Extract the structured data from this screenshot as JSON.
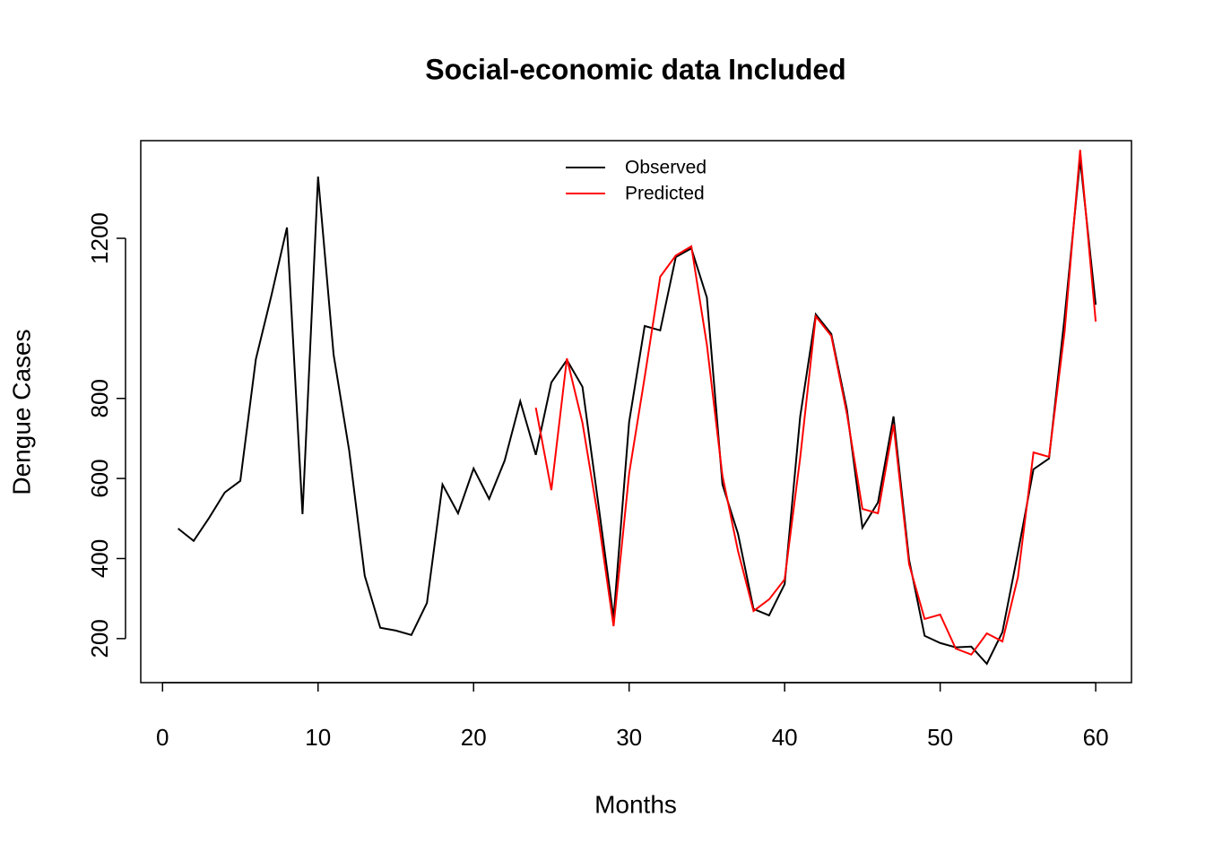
{
  "chart_data": {
    "type": "line",
    "title": "Social-economic data Included",
    "x_label": "Months",
    "y_label": "Dengue Cases",
    "x": [
      1,
      2,
      3,
      4,
      5,
      6,
      7,
      8,
      9,
      10,
      11,
      12,
      13,
      14,
      15,
      16,
      17,
      18,
      19,
      20,
      21,
      22,
      23,
      24,
      25,
      26,
      27,
      28,
      29,
      30,
      31,
      32,
      33,
      34,
      35,
      36,
      37,
      38,
      39,
      40,
      41,
      42,
      43,
      44,
      45,
      46,
      47,
      48,
      49,
      50,
      51,
      52,
      53,
      54,
      55,
      56,
      57,
      58,
      59,
      60
    ],
    "series": [
      {
        "name": "Observed",
        "color": "#000000",
        "values": [
          475,
          444,
          502,
          565,
          594,
          898,
          1057,
          1227,
          511,
          1354,
          909,
          670,
          357,
          227,
          220,
          209,
          289,
          585,
          513,
          625,
          549,
          645,
          793,
          659,
          840,
          896,
          829,
          542,
          251,
          741,
          981,
          970,
          1153,
          1175,
          1052,
          585,
          462,
          274,
          258,
          336,
          755,
          1010,
          961,
          773,
          477,
          540,
          755,
          397,
          207,
          189,
          178,
          180,
          137,
          216,
          415,
          623,
          650,
          1003,
          1397,
          1034
        ]
      },
      {
        "name": "Predicted",
        "color": "#ff0000",
        "values": [
          null,
          null,
          null,
          null,
          null,
          null,
          null,
          null,
          null,
          null,
          null,
          null,
          null,
          null,
          null,
          null,
          null,
          null,
          null,
          null,
          null,
          null,
          null,
          777,
          571,
          900,
          739,
          504,
          231,
          612,
          853,
          1104,
          1157,
          1180,
          934,
          607,
          419,
          269,
          298,
          348,
          652,
          1005,
          956,
          762,
          524,
          513,
          735,
          386,
          249,
          260,
          175,
          160,
          213,
          193,
          354,
          665,
          654,
          967,
          1421,
          992
        ]
      }
    ],
    "xlim": [
      -1.4,
      62.3
    ],
    "ylim": [
      90,
      1444
    ],
    "xticks": [
      0,
      10,
      20,
      30,
      40,
      50,
      60
    ],
    "yticks": [
      200,
      400,
      600,
      800,
      1200
    ],
    "legend": "top"
  }
}
